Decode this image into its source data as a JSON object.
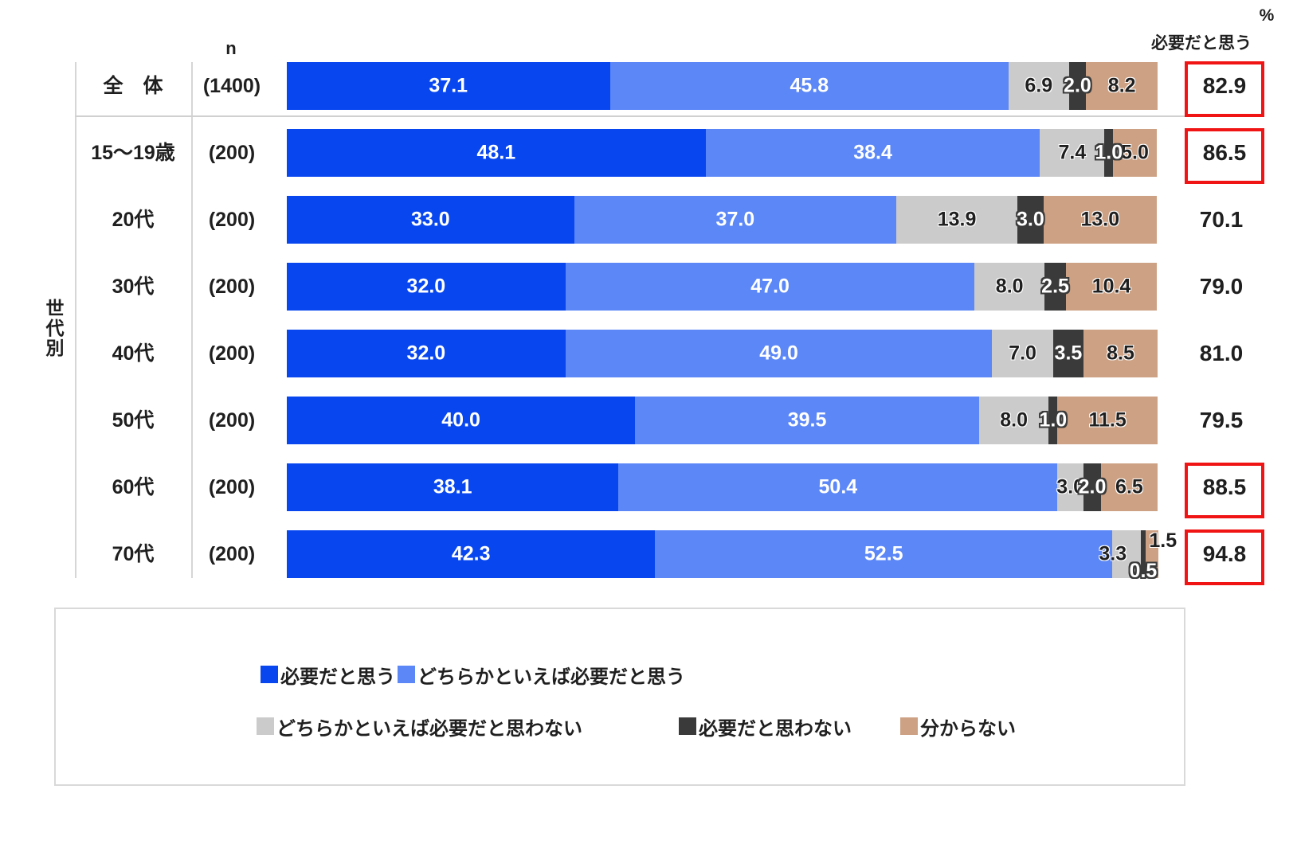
{
  "labels": {
    "percent_sign": "%",
    "total_header": "必要だと思う",
    "n_header": "n",
    "group": "世代別"
  },
  "colors": {
    "series": [
      "#0847f0",
      "#5b87f7",
      "#cbcbcb",
      "#3a3a3a",
      "#cda183"
    ],
    "highlight_box": "#f01414",
    "frame_line": "#d6d6d6"
  },
  "chart_data": {
    "type": "bar",
    "stacked": true,
    "orientation": "horizontal",
    "unit": "%",
    "xlim": [
      0,
      100
    ],
    "series": [
      "必要だと思う",
      "どちらかといえば必要だと思う",
      "どちらかといえば必要だと思わない",
      "必要だと思わない",
      "分からない"
    ],
    "categories": [
      "全　体",
      "15〜19歳",
      "20代",
      "30代",
      "40代",
      "50代",
      "60代",
      "70代"
    ],
    "n": [
      "(1400)",
      "(200)",
      "(200)",
      "(200)",
      "(200)",
      "(200)",
      "(200)",
      "(200)"
    ],
    "values": [
      [
        "37.1",
        "45.8",
        "6.9",
        "2.0",
        "8.2"
      ],
      [
        "48.1",
        "38.4",
        "7.4",
        "1.0",
        "5.0"
      ],
      [
        "33.0",
        "37.0",
        "13.9",
        "3.0",
        "13.0"
      ],
      [
        "32.0",
        "47.0",
        "8.0",
        "2.5",
        "10.4"
      ],
      [
        "32.0",
        "49.0",
        "7.0",
        "3.5",
        "8.5"
      ],
      [
        "40.0",
        "39.5",
        "8.0",
        "1.0",
        "11.5"
      ],
      [
        "38.1",
        "50.4",
        "3.0",
        "2.0",
        "6.5"
      ],
      [
        "42.3",
        "52.5",
        "3.3",
        "0.5",
        "1.5"
      ]
    ],
    "totals": [
      "82.9",
      "86.5",
      "70.1",
      "79.0",
      "81.0",
      "79.5",
      "88.5",
      "94.8"
    ],
    "totals_boxed": [
      true,
      true,
      false,
      false,
      false,
      false,
      true,
      true
    ],
    "legend_rows": [
      [
        0,
        1
      ],
      [
        2,
        3,
        4
      ]
    ]
  }
}
